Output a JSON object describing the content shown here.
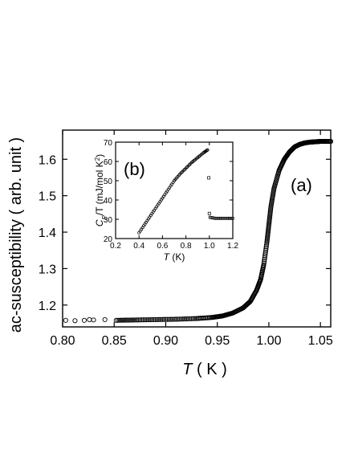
{
  "chart_data": [
    {
      "type": "scatter",
      "panel_label": "(a)",
      "xlabel_symbol": "T",
      "xlabel_unit": " ( K )",
      "ylabel": "ac-susceptibility ( arb. unit )",
      "xlim": [
        0.8,
        1.06
      ],
      "ylim": [
        1.14,
        1.68
      ],
      "xticks": [
        0.8,
        0.85,
        0.9,
        0.95,
        1.0,
        1.05
      ],
      "xtick_labels": [
        "0.80",
        "0.85",
        "0.90",
        "0.95",
        "1.00",
        "1.05"
      ],
      "yticks": [
        1.2,
        1.3,
        1.4,
        1.5,
        1.6
      ],
      "ytick_labels": [
        "1.2",
        "1.3",
        "1.4",
        "1.5",
        "1.6"
      ],
      "marker": "open-circle",
      "grid": false,
      "series": [
        {
          "sparse_x": [
            0.803,
            0.812,
            0.821,
            0.826,
            0.83,
            0.841
          ],
          "sparse_y": [
            1.158,
            1.157,
            1.158,
            1.16,
            1.159,
            1.16
          ],
          "curve_x": [
            0.852,
            0.87,
            0.89,
            0.91,
            0.93,
            0.945,
            0.955,
            0.965,
            0.975,
            0.982,
            0.988,
            0.992,
            0.995,
            0.998,
            1.0,
            1.002,
            1.005,
            1.01,
            1.015,
            1.02,
            1.025,
            1.03,
            1.035,
            1.04,
            1.045,
            1.05,
            1.06
          ],
          "curve_y": [
            1.158,
            1.159,
            1.16,
            1.161,
            1.163,
            1.166,
            1.17,
            1.178,
            1.192,
            1.21,
            1.24,
            1.27,
            1.31,
            1.37,
            1.42,
            1.47,
            1.52,
            1.57,
            1.6,
            1.62,
            1.634,
            1.641,
            1.645,
            1.647,
            1.648,
            1.649,
            1.649
          ]
        }
      ]
    },
    {
      "type": "scatter",
      "panel_label": "(b)",
      "xlabel_symbol": "T",
      "xlabel_unit": " (K)",
      "ylabel": "C_P/T (mJ/mol K^2)",
      "ylabel_parts": {
        "c": "C",
        "sub": "P",
        "rest": "/T (mJ/mol K",
        "sup": "2",
        "close": ")"
      },
      "xlim": [
        0.2,
        1.2
      ],
      "ylim": [
        20,
        70
      ],
      "xticks": [
        0.2,
        0.4,
        0.6,
        0.8,
        1.0,
        1.2
      ],
      "xtick_labels": [
        "0.2",
        "0.4",
        "0.6",
        "0.8",
        "1.0",
        "1.2"
      ],
      "yticks": [
        20,
        30,
        40,
        50,
        60,
        70
      ],
      "ytick_labels": [
        "20",
        "30",
        "40",
        "50",
        "60",
        "70"
      ],
      "marker": "open-circle",
      "grid": false,
      "series": [
        {
          "low_x": [
            0.4,
            0.45,
            0.5,
            0.55,
            0.6,
            0.65,
            0.7,
            0.75,
            0.8,
            0.85,
            0.9,
            0.95,
            0.985
          ],
          "low_y": [
            23,
            27.5,
            32,
            36.5,
            41,
            45.5,
            50,
            53.5,
            56.5,
            59.5,
            62,
            64.5,
            66
          ],
          "jump_points": [
            [
              0.995,
              51.5
            ],
            [
              1.0,
              33
            ]
          ],
          "high_x": [
            1.005,
            1.05,
            1.1,
            1.15,
            1.2
          ],
          "high_y": [
            31,
            30.5,
            30.5,
            30.5,
            30.5
          ]
        }
      ]
    }
  ]
}
